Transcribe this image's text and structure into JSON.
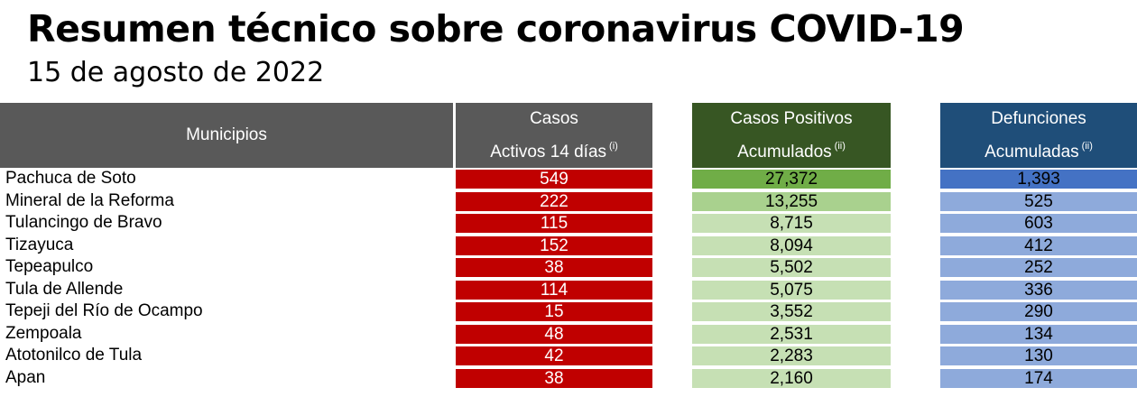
{
  "title": "Resumen técnico sobre coronavirus COVID-19",
  "date": "15 de agosto de 2022",
  "headers": {
    "municipios": "Municipios",
    "casos_line1": "Casos",
    "casos_line2": "Activos 14 días",
    "casos_note": "(i)",
    "positivos_line1": "Casos Positivos",
    "positivos_line2": "Acumulados",
    "positivos_note": "(ii)",
    "defunciones_line1": "Defunciones",
    "defunciones_line2": "Acumuladas",
    "defunciones_note": "(ii)"
  },
  "colors": {
    "header_gray": "#595959",
    "header_green": "#375623",
    "header_blue": "#1f4e79",
    "casos_red": "#c00000",
    "positivos_top": "#70ad47",
    "positivos_second": "#a9d18e",
    "positivos_rest": "#c6e0b4",
    "defunciones_top": "#4472c4",
    "defunciones_rest": "#8eaadb"
  },
  "rows": [
    {
      "municipio": "Pachuca de Soto",
      "casos_activos": "549",
      "positivos": "27,372",
      "defunciones": "1,393"
    },
    {
      "municipio": "Mineral de la Reforma",
      "casos_activos": "222",
      "positivos": "13,255",
      "defunciones": "525"
    },
    {
      "municipio": "Tulancingo de Bravo",
      "casos_activos": "115",
      "positivos": "8,715",
      "defunciones": "603"
    },
    {
      "municipio": "Tizayuca",
      "casos_activos": "152",
      "positivos": "8,094",
      "defunciones": "412"
    },
    {
      "municipio": "Tepeapulco",
      "casos_activos": "38",
      "positivos": "5,502",
      "defunciones": "252"
    },
    {
      "municipio": "Tula de Allende",
      "casos_activos": "114",
      "positivos": "5,075",
      "defunciones": "336"
    },
    {
      "municipio": "Tepeji del Río de Ocampo",
      "casos_activos": "15",
      "positivos": "3,552",
      "defunciones": "290"
    },
    {
      "municipio": "Zempoala",
      "casos_activos": "48",
      "positivos": "2,531",
      "defunciones": "134"
    },
    {
      "municipio": "Atotonilco de Tula",
      "casos_activos": "42",
      "positivos": "2,283",
      "defunciones": "130"
    },
    {
      "municipio": "Apan",
      "casos_activos": "38",
      "positivos": "2,160",
      "defunciones": "174"
    }
  ]
}
